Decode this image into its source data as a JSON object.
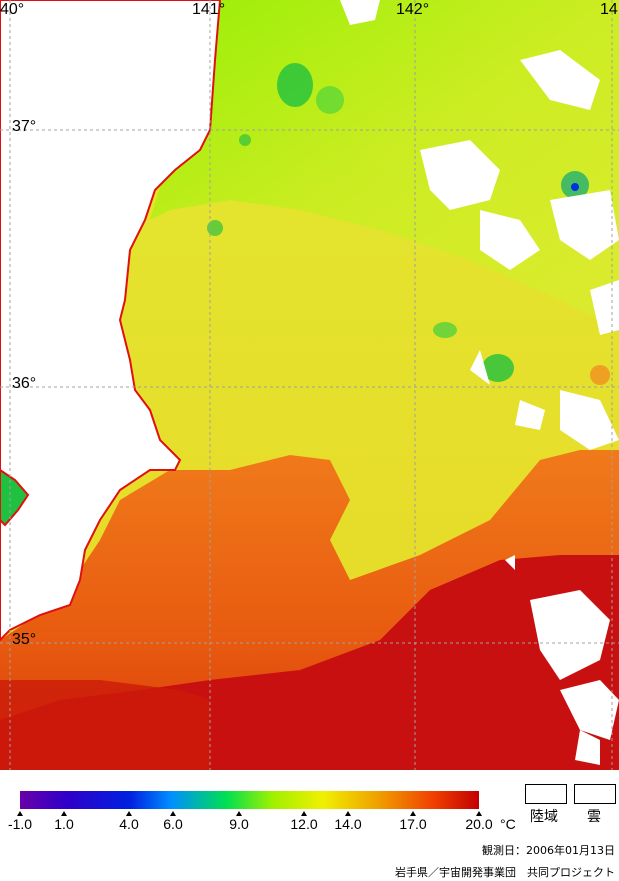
{
  "map": {
    "lon_labels": [
      "40°",
      "141°",
      "142°",
      "14"
    ],
    "lat_labels": [
      "37°",
      "36°",
      "35°"
    ]
  },
  "colorbar": {
    "ticks": [
      "-1.0",
      "1.0",
      "4.0",
      "6.0",
      "9.0",
      "12.0",
      "14.0",
      "17.0",
      "20.0"
    ],
    "unit": "°C",
    "range": [
      -1.0,
      20.0
    ],
    "colors": [
      "#6a00a8",
      "#0000d0",
      "#0070ff",
      "#00d0ff",
      "#00e060",
      "#90f000",
      "#f0f000",
      "#f0b000",
      "#f06000",
      "#c00000"
    ]
  },
  "legend": {
    "land_label": "陸域",
    "cloud_label": "雲",
    "land_color": "#ffffff",
    "cloud_color": "#ffffff"
  },
  "observation_date": "観測日：2006年01月13日",
  "credit": "岩手県／宇宙開発事業団　共同プロジェクト"
}
